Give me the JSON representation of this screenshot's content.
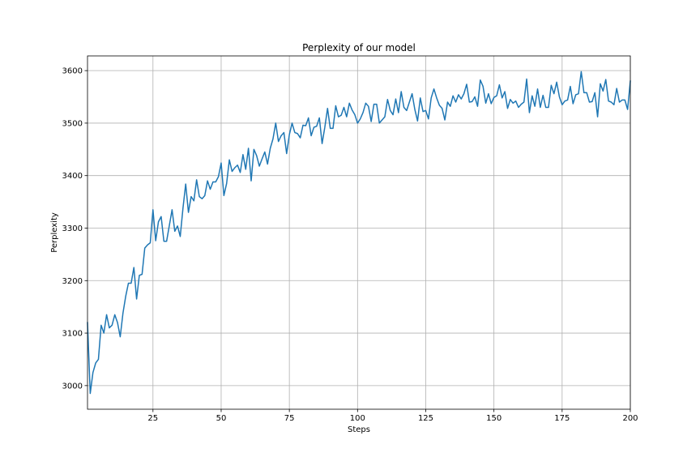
{
  "chart_data": {
    "type": "line",
    "title": "Perplexity of our model",
    "xlabel": "Steps",
    "ylabel": "Perplexity",
    "xlim": [
      1,
      200
    ],
    "ylim": [
      2955,
      3628
    ],
    "xticks": [
      25,
      50,
      75,
      100,
      125,
      150,
      175,
      200
    ],
    "yticks": [
      3000,
      3100,
      3200,
      3300,
      3400,
      3500,
      3600
    ],
    "grid": true,
    "legend": "none",
    "series": [
      {
        "color": "#1f77b4",
        "x": [
          1,
          2,
          3,
          4,
          5,
          6,
          7,
          8,
          9,
          10,
          11,
          12,
          13,
          14,
          15,
          16,
          17,
          18,
          19,
          20,
          21,
          22,
          23,
          24,
          25,
          26,
          27,
          28,
          29,
          30,
          31,
          32,
          33,
          34,
          35,
          36,
          37,
          38,
          39,
          40,
          41,
          42,
          43,
          44,
          45,
          46,
          47,
          48,
          49,
          50,
          51,
          52,
          53,
          54,
          55,
          56,
          57,
          58,
          59,
          60,
          61,
          62,
          63,
          64,
          65,
          66,
          67,
          68,
          69,
          70,
          71,
          72,
          73,
          74,
          75,
          76,
          77,
          78,
          79,
          80,
          81,
          82,
          83,
          84,
          85,
          86,
          87,
          88,
          89,
          90,
          91,
          92,
          93,
          94,
          95,
          96,
          97,
          98,
          99,
          100,
          101,
          102,
          103,
          104,
          105,
          106,
          107,
          108,
          109,
          110,
          111,
          112,
          113,
          114,
          115,
          116,
          117,
          118,
          119,
          120,
          121,
          122,
          123,
          124,
          125,
          126,
          127,
          128,
          129,
          130,
          131,
          132,
          133,
          134,
          135,
          136,
          137,
          138,
          139,
          140,
          141,
          142,
          143,
          144,
          145,
          146,
          147,
          148,
          149,
          150,
          151,
          152,
          153,
          154,
          155,
          156,
          157,
          158,
          159,
          160,
          161,
          162,
          163,
          164,
          165,
          166,
          167,
          168,
          169,
          170,
          171,
          172,
          173,
          174,
          175,
          176,
          177,
          178,
          179,
          180,
          181,
          182,
          183,
          184,
          185,
          186,
          187,
          188,
          189,
          190,
          191,
          192,
          193,
          194,
          195,
          196,
          197,
          198,
          199,
          200
        ],
        "y": [
          3120,
          2985,
          3025,
          3043,
          3050,
          3115,
          3100,
          3135,
          3110,
          3115,
          3135,
          3120,
          3093,
          3138,
          3170,
          3195,
          3195,
          3225,
          3165,
          3210,
          3212,
          3262,
          3268,
          3272,
          3335,
          3276,
          3312,
          3322,
          3275,
          3275,
          3305,
          3335,
          3294,
          3304,
          3284,
          3338,
          3384,
          3330,
          3360,
          3352,
          3392,
          3360,
          3356,
          3362,
          3390,
          3374,
          3388,
          3388,
          3398,
          3424,
          3362,
          3385,
          3430,
          3408,
          3415,
          3420,
          3406,
          3440,
          3412,
          3452,
          3390,
          3450,
          3438,
          3418,
          3432,
          3445,
          3422,
          3452,
          3470,
          3500,
          3465,
          3476,
          3482,
          3442,
          3478,
          3500,
          3482,
          3480,
          3472,
          3496,
          3495,
          3510,
          3476,
          3492,
          3494,
          3510,
          3461,
          3492,
          3528,
          3490,
          3490,
          3533,
          3512,
          3515,
          3530,
          3512,
          3538,
          3525,
          3516,
          3500,
          3508,
          3520,
          3538,
          3532,
          3503,
          3536,
          3536,
          3500,
          3506,
          3512,
          3545,
          3524,
          3516,
          3546,
          3520,
          3560,
          3530,
          3524,
          3540,
          3556,
          3526,
          3504,
          3548,
          3522,
          3524,
          3508,
          3548,
          3565,
          3548,
          3534,
          3528,
          3506,
          3540,
          3532,
          3552,
          3540,
          3554,
          3546,
          3556,
          3574,
          3540,
          3541,
          3550,
          3532,
          3582,
          3570,
          3538,
          3556,
          3537,
          3549,
          3552,
          3573,
          3548,
          3560,
          3528,
          3545,
          3538,
          3542,
          3530,
          3536,
          3540,
          3584,
          3520,
          3552,
          3532,
          3565,
          3530,
          3553,
          3530,
          3530,
          3572,
          3556,
          3578,
          3550,
          3535,
          3542,
          3544,
          3570,
          3537,
          3554,
          3556,
          3598,
          3558,
          3558,
          3540,
          3541,
          3558,
          3512,
          3575,
          3561,
          3583,
          3542,
          3540,
          3535,
          3566,
          3540,
          3544,
          3544,
          3526,
          3580
        ]
      }
    ]
  }
}
